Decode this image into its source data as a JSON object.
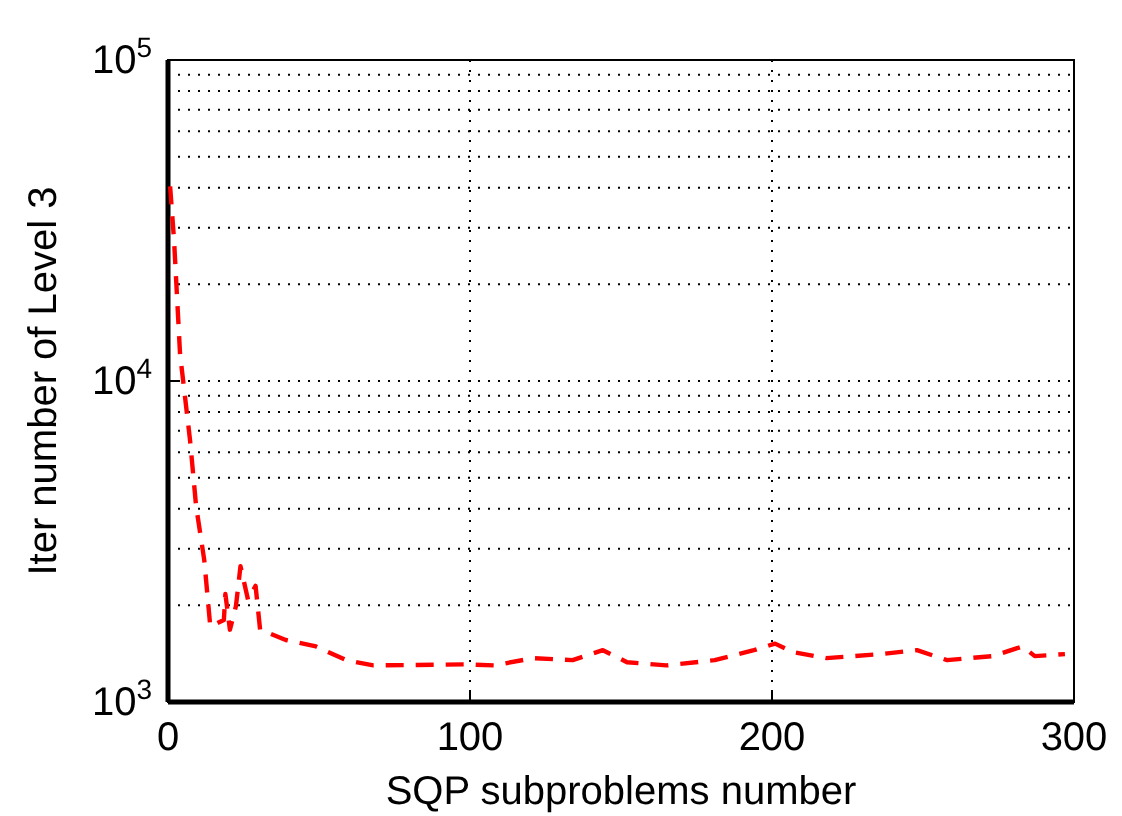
{
  "chart_data": {
    "type": "line",
    "xlabel": "SQP subproblems number",
    "ylabel": "Iter number of Level 3",
    "log": true,
    "grid": true,
    "line_style": "dashed",
    "marker": "none",
    "xlim": [
      0,
      300
    ],
    "xticks": [
      0,
      100,
      200,
      300
    ],
    "ylim": [
      1000,
      100000
    ],
    "yticks": [
      {
        "value": 1000,
        "label": "10$^{3}$"
      },
      {
        "value": 10000,
        "label": "10$^{4}$"
      },
      {
        "value": 100000,
        "label": "10$^{5}$"
      }
    ],
    "series": [
      {
        "color": "#ff0000",
        "x": [
          0.7,
          2,
          4,
          7.3,
          9.3,
          12,
          14,
          18.5,
          19,
          20.5,
          22.5,
          24,
          26.5,
          29,
          30.5,
          39,
          49,
          59,
          68,
          99,
          108,
          121,
          134,
          144,
          152,
          165,
          181,
          194,
          201,
          207,
          218,
          236,
          248,
          258,
          273,
          283,
          287,
          297
        ],
        "values": [
          40400,
          27500,
          12100,
          6540,
          4080,
          2770,
          1720,
          1800,
          2170,
          1680,
          1990,
          2650,
          2080,
          2300,
          1680,
          1560,
          1490,
          1350,
          1300,
          1310,
          1300,
          1370,
          1350,
          1450,
          1330,
          1300,
          1350,
          1450,
          1520,
          1430,
          1370,
          1410,
          1450,
          1350,
          1390,
          1490,
          1390,
          1410
        ]
      }
    ]
  }
}
